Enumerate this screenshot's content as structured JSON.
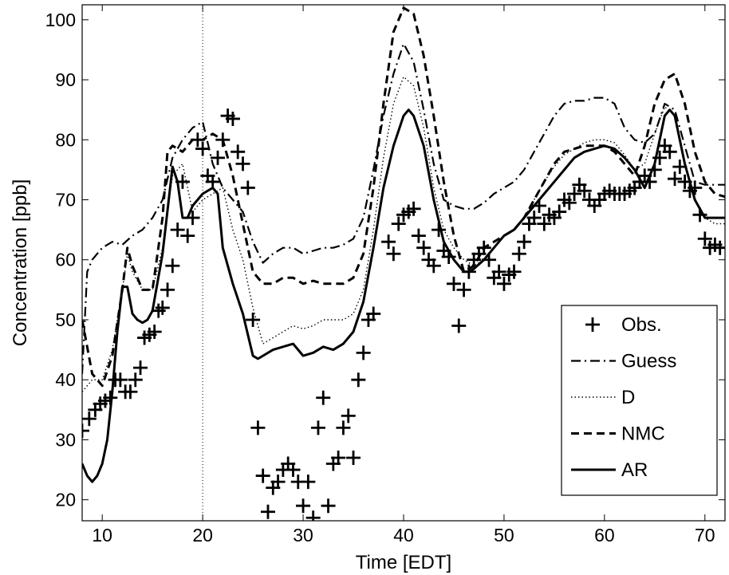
{
  "chart_data": {
    "type": "line",
    "title": "",
    "xlabel": "Time [EDT]",
    "ylabel": "Concentration [ppb]",
    "xlim": [
      8,
      72
    ],
    "ylim": [
      16.5,
      102.5
    ],
    "xticks": [
      10,
      20,
      30,
      40,
      50,
      60,
      70
    ],
    "yticks": [
      20,
      30,
      40,
      50,
      60,
      70,
      80,
      90,
      100
    ],
    "reference_line_x": 20,
    "grid": false,
    "legend_position": "lower-right",
    "series": [
      {
        "name": "Obs.",
        "style": "plus-markers",
        "x": [
          8,
          8.7,
          9.3,
          9.8,
          10.3,
          10.8,
          11.3,
          11.8,
          12.3,
          12.8,
          13.3,
          13.8,
          14.2,
          14.7,
          15.2,
          15.6,
          16.0,
          16.5,
          17.0,
          17.5,
          18.0,
          18.5,
          19.0,
          19.5,
          20.0,
          20.5,
          21.0,
          21.5,
          22.0,
          22.5,
          23.0,
          23.5,
          24.0,
          24.5,
          25.0,
          25.5,
          26.0,
          26.5,
          27.0,
          27.5,
          28.0,
          28.5,
          29.0,
          29.5,
          30.0,
          30.5,
          31.0,
          31.5,
          32.0,
          32.5,
          33.0,
          33.5,
          34.0,
          34.5,
          35.0,
          35.5,
          36.0,
          36.5,
          37.0,
          38.5,
          39.0,
          39.5,
          40.0,
          40.5,
          41.0,
          41.5,
          42.0,
          42.5,
          43.0,
          43.5,
          44.0,
          44.5,
          45.0,
          45.5,
          46.0,
          46.5,
          47.0,
          47.5,
          48.0,
          48.5,
          49.0,
          49.5,
          50.0,
          50.5,
          51.0,
          51.5,
          52.0,
          52.5,
          53.0,
          53.5,
          54.0,
          54.5,
          55.0,
          55.5,
          56.0,
          56.5,
          57.0,
          57.5,
          58.0,
          58.5,
          59.0,
          59.5,
          60.0,
          60.5,
          61.0,
          61.5,
          62.0,
          62.5,
          63.0,
          63.5,
          64.0,
          64.5,
          65.0,
          65.5,
          66.0,
          66.5,
          67.0,
          67.5,
          68.0,
          68.5,
          69.0,
          69.5,
          70.0,
          70.5,
          71.0,
          71.5
        ],
        "y": [
          31.5,
          33.5,
          35,
          36,
          36.5,
          37,
          40,
          40,
          38,
          38,
          40,
          42,
          47,
          47.5,
          48,
          51.5,
          52,
          55,
          59,
          65,
          73,
          64,
          67,
          80,
          78.5,
          74,
          73,
          77,
          80,
          84,
          83.5,
          78,
          76,
          72,
          50,
          32,
          24,
          18,
          22,
          23,
          25,
          26,
          25,
          23,
          19,
          23,
          17,
          32,
          37,
          19,
          26,
          27,
          32,
          34,
          27,
          40,
          44.5,
          50,
          51,
          63,
          61,
          66,
          67.5,
          68,
          68.5,
          64,
          62,
          60,
          59,
          65,
          61.5,
          60.5,
          56,
          49,
          55,
          58,
          60,
          61,
          62,
          60,
          57,
          58,
          56,
          57.5,
          58,
          61,
          63,
          66,
          67,
          69,
          66,
          67.5,
          67,
          68,
          70,
          69.5,
          71,
          72.5,
          71.5,
          70,
          69,
          70,
          71,
          71.5,
          71,
          71,
          71,
          71.5,
          72,
          73,
          74,
          73,
          75,
          77,
          79,
          78,
          73.5,
          75.5,
          73,
          71.5,
          72,
          67.5,
          63.5,
          62,
          62.5,
          62
        ]
      },
      {
        "name": "Guess",
        "style": "dash-dot",
        "x": [
          8,
          8.5,
          9,
          10,
          11,
          12,
          13,
          14,
          15,
          16,
          17,
          18,
          19,
          20,
          21,
          22,
          23,
          24,
          25,
          26,
          27,
          28,
          29,
          30,
          31,
          32,
          33,
          34,
          35,
          36,
          37,
          38,
          39,
          40,
          41,
          42,
          43,
          44,
          45,
          46,
          47,
          48,
          49,
          50,
          51,
          52,
          53,
          54,
          55,
          56,
          57,
          58,
          59,
          60,
          61,
          62,
          63,
          64,
          65,
          66,
          67,
          68,
          69,
          70,
          71,
          72
        ],
        "y": [
          41,
          58,
          60,
          62,
          63,
          62.5,
          64,
          65,
          67,
          70,
          77,
          80,
          82,
          83,
          76,
          72,
          70,
          68,
          63,
          59.5,
          61,
          62,
          62,
          61,
          61.5,
          62,
          62,
          62.5,
          63.5,
          67,
          75,
          84,
          91,
          96,
          93,
          85,
          76,
          70,
          69,
          68.5,
          68.5,
          69.5,
          71,
          72,
          73,
          75,
          78,
          81,
          84,
          86,
          86.5,
          86.5,
          87,
          87,
          86,
          82,
          80,
          79.5,
          81,
          86,
          85,
          79,
          73,
          72.5,
          72.5,
          72.5
        ]
      },
      {
        "name": "D",
        "style": "dotted",
        "x": [
          8,
          9,
          10,
          11,
          12,
          12.5,
          13,
          14,
          15,
          16,
          17,
          18,
          19,
          20,
          21,
          22,
          23,
          24,
          25,
          26,
          27,
          28,
          29,
          30,
          31,
          32,
          33,
          34,
          35,
          36,
          37,
          38,
          39,
          40,
          41,
          42,
          43,
          44,
          45,
          46,
          47,
          48,
          49,
          50,
          51,
          52,
          53,
          54,
          55,
          56,
          57,
          58,
          59,
          60,
          61,
          62,
          63,
          64,
          65,
          66,
          67,
          68,
          69,
          70,
          71,
          72
        ],
        "y": [
          38,
          40,
          40,
          45,
          55,
          61,
          58,
          55,
          55,
          62,
          74,
          76,
          68,
          70,
          71,
          72,
          65,
          60,
          52,
          46,
          47,
          48,
          49,
          48.5,
          49,
          50,
          50,
          50,
          51,
          55,
          65,
          77,
          86,
          90.5,
          89,
          82,
          72,
          65,
          62,
          60,
          59,
          60,
          62,
          64,
          65,
          67,
          70,
          73,
          75.5,
          77.5,
          78.5,
          79.5,
          80,
          80,
          79.5,
          77.5,
          75,
          76,
          81,
          85.5,
          84,
          76,
          70,
          67,
          66,
          66
        ]
      },
      {
        "name": "NMC",
        "style": "dashed",
        "x": [
          8,
          9,
          10,
          11,
          12,
          12.5,
          13,
          14,
          15,
          16,
          16.5,
          17,
          18,
          19,
          20,
          21,
          22,
          23,
          24,
          25,
          26,
          27,
          28,
          29,
          30,
          31,
          32,
          33,
          34,
          35,
          36,
          37,
          38,
          39,
          40,
          41,
          42,
          43,
          44,
          45,
          46,
          47,
          48,
          49,
          50,
          51,
          52,
          53,
          54,
          55,
          56,
          57,
          58,
          59,
          60,
          61,
          62,
          63,
          64,
          65,
          66,
          67,
          68,
          69,
          70,
          71,
          72
        ],
        "y": [
          50,
          41,
          39,
          44,
          55,
          62,
          59,
          55,
          55,
          67,
          78,
          79,
          78,
          80,
          80,
          81,
          80,
          74,
          66,
          58,
          56,
          56,
          57,
          57,
          56,
          56.5,
          56,
          56,
          56,
          57,
          61,
          72,
          86,
          98,
          102,
          101,
          94,
          84,
          73,
          64,
          58,
          59,
          62,
          63,
          64,
          65,
          67,
          70,
          73,
          76,
          78,
          78.5,
          79,
          79,
          79,
          78,
          76,
          74,
          79,
          86,
          90,
          91,
          86,
          78,
          73,
          71,
          70.5
        ]
      },
      {
        "name": "AR",
        "style": "solid",
        "x": [
          8,
          8.5,
          9,
          9.5,
          10,
          10.5,
          11,
          11.5,
          12,
          12.5,
          13,
          13.5,
          14,
          14.5,
          15,
          16,
          17,
          17.5,
          18,
          18.5,
          19,
          19.5,
          20,
          21,
          21.5,
          22,
          23,
          24,
          25,
          25.5,
          26,
          27,
          28,
          29,
          30,
          31,
          32,
          33,
          34,
          35,
          36,
          37,
          38,
          39,
          40,
          40.5,
          41,
          42,
          43,
          44,
          45,
          46,
          46.5,
          47,
          48,
          49,
          50,
          51,
          52,
          53,
          54,
          55,
          56,
          57,
          58,
          59,
          60,
          61,
          62,
          63,
          64,
          65,
          66,
          66.5,
          67,
          68,
          69,
          70,
          71,
          72
        ],
        "y": [
          26,
          24,
          23,
          24,
          26,
          30,
          38,
          48,
          55.5,
          55.5,
          51,
          50,
          49.5,
          50,
          51.5,
          61,
          75.5,
          73,
          67,
          67,
          69,
          70,
          71,
          72,
          71,
          62,
          56,
          51,
          44,
          43.5,
          44,
          45,
          45.5,
          46,
          44,
          44.5,
          45.5,
          45,
          46,
          48,
          53,
          62,
          72,
          79,
          84,
          85,
          84,
          79,
          70,
          63,
          60,
          58,
          58,
          58.5,
          60,
          62,
          64,
          65,
          67,
          69,
          71,
          73,
          75,
          77,
          78,
          78.5,
          79,
          78.5,
          77,
          75,
          72,
          76,
          84,
          85,
          84,
          76,
          70,
          67,
          67,
          67
        ]
      }
    ]
  }
}
